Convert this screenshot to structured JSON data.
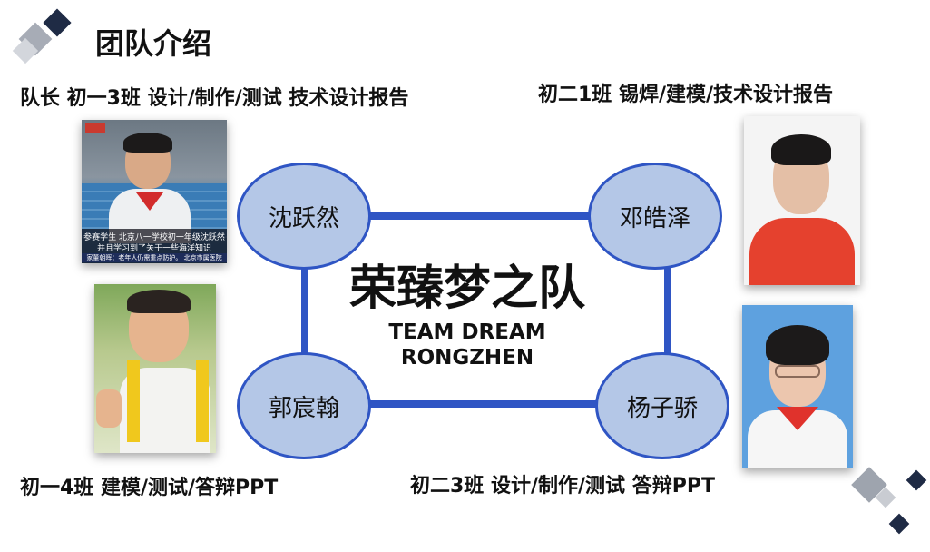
{
  "header": {
    "title": "团队介绍"
  },
  "members": [
    {
      "name": "沈跃然",
      "caption": "队长 初一3班 设计/制作/测试 技术设计报告"
    },
    {
      "name": "邓皓泽",
      "caption": "初二1班 锡焊/建模/技术设计报告"
    },
    {
      "name": "郭宸翰",
      "caption": "初一4班 建模/测试/答辩PPT"
    },
    {
      "name": "杨子骄",
      "caption": "初二3班 设计/制作/测试 答辩PPT"
    }
  ],
  "team": {
    "name_cn": "荣臻梦之队",
    "name_en_line1": "TEAM DREAM",
    "name_en_line2": "RONGZHEN"
  },
  "photo_tv": {
    "subtitle_line1": "参赛学生 北京八一学校初一年级沈跃然",
    "subtitle_line2": "并且学习到了关于一些海洋知识",
    "ticker": "家董朝晖：老年人仍需重点防护。    北京市属医院"
  },
  "colors": {
    "node_fill": "#b4c7e7",
    "node_border": "#2f55c4",
    "connector": "#2f55c4"
  }
}
